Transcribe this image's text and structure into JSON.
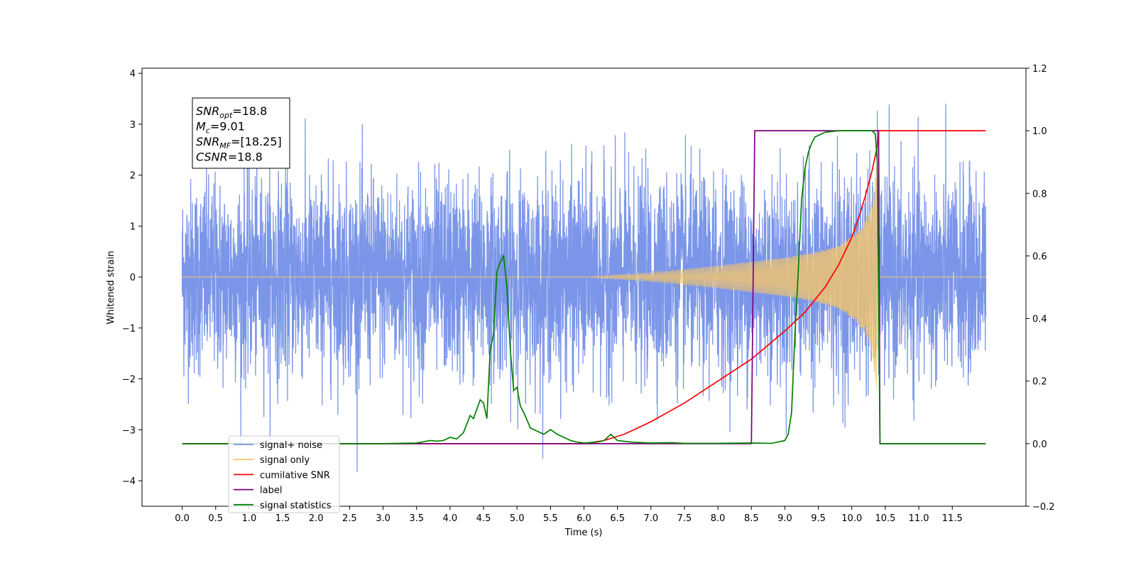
{
  "chart_data": {
    "type": "line",
    "xlabel": "Time (s)",
    "ylabel": "Whitened strain",
    "xlim": [
      -0.6,
      12.6
    ],
    "ylim": [
      -4.5,
      4.1
    ],
    "y2lim": [
      -0.2,
      1.2
    ],
    "x_ticks": [
      0.0,
      0.5,
      1.0,
      1.5,
      2.0,
      2.5,
      3.0,
      3.5,
      4.0,
      4.5,
      5.0,
      5.5,
      6.0,
      6.5,
      7.0,
      7.5,
      8.0,
      8.5,
      9.0,
      9.5,
      10.0,
      10.5,
      11.0,
      11.5
    ],
    "x_tick_labels": [
      "0.0",
      "0.5",
      "1.0",
      "1.5",
      "2.0",
      "2.5",
      "3.0",
      "3.5",
      "4.0",
      "4.5",
      "5.0",
      "5.5",
      "6.0",
      "6.5",
      "7.0",
      "7.5",
      "8.0",
      "8.5",
      "9.0",
      "9.5",
      "10.0",
      "10.5",
      "11.0",
      "11.5"
    ],
    "y_ticks": [
      4,
      3,
      2,
      1,
      0,
      -1,
      -2,
      -3,
      -4
    ],
    "y_tick_labels": [
      "4",
      "3",
      "2",
      "1",
      "0",
      "−1",
      "−2",
      "−3",
      "−4"
    ],
    "y2_ticks": [
      1.2,
      1.0,
      0.8,
      0.6,
      0.4,
      0.2,
      0.0,
      -0.2
    ],
    "y2_tick_labels": [
      "1.2",
      "1.0",
      "0.8",
      "0.6",
      "0.4",
      "0.2",
      "0.0",
      "−0.2"
    ],
    "grid": false,
    "legend_position": "lower-left",
    "annotation": {
      "position": "upper-left",
      "lines": [
        {
          "base": "SNR",
          "sub": "opt",
          "rest": "=18.8"
        },
        {
          "base": "M",
          "sub": "c",
          "rest": "=9.01"
        },
        {
          "base": "SNR",
          "sub": "MF",
          "rest": "=[18.25]"
        },
        {
          "base": "CSNR",
          "sub": "",
          "rest": "=18.8"
        }
      ]
    },
    "series": [
      {
        "name": "signal+ noise",
        "axis": "left",
        "color": "#7b96e8",
        "kind": "noise",
        "x_range": [
          0.0,
          12.0
        ],
        "envelope_typical": 2.4,
        "min_value": -4.1,
        "max_value": 3.72
      },
      {
        "name": "signal only",
        "axis": "left",
        "color": "#f5c56a",
        "kind": "chirp",
        "x_range": [
          0.0,
          12.0
        ],
        "merger_time": 10.4,
        "envelope": {
          "x": [
            0.0,
            6.0,
            7.0,
            8.0,
            9.0,
            9.5,
            9.8,
            10.0,
            10.2,
            10.3,
            10.38,
            10.42,
            12.0
          ],
          "y": [
            0.0,
            0.0,
            0.08,
            0.22,
            0.38,
            0.5,
            0.62,
            0.8,
            1.1,
            1.5,
            2.4,
            0.0,
            0.0
          ]
        }
      },
      {
        "name": "cumilative SNR",
        "axis": "right",
        "color": "#ff0000",
        "x": [
          0.0,
          6.0,
          6.3,
          6.6,
          7.0,
          7.5,
          8.0,
          8.5,
          9.0,
          9.3,
          9.6,
          9.8,
          10.0,
          10.1,
          10.2,
          10.3,
          10.38,
          10.4,
          12.0
        ],
        "y": [
          0.0,
          0.0,
          0.01,
          0.03,
          0.07,
          0.13,
          0.2,
          0.27,
          0.36,
          0.42,
          0.5,
          0.57,
          0.66,
          0.72,
          0.79,
          0.87,
          0.95,
          1.0,
          1.0
        ]
      },
      {
        "name": "label",
        "axis": "right",
        "color": "#800080",
        "x": [
          0.0,
          8.5,
          8.55,
          10.4,
          10.42,
          12.0
        ],
        "y": [
          0.0,
          0.0,
          1.0,
          1.0,
          0.0,
          0.0
        ]
      },
      {
        "name": "signal statistics",
        "axis": "right",
        "color": "#008000",
        "x": [
          0.0,
          3.0,
          3.5,
          3.7,
          3.8,
          3.9,
          4.0,
          4.1,
          4.2,
          4.3,
          4.35,
          4.45,
          4.5,
          4.55,
          4.6,
          4.65,
          4.7,
          4.75,
          4.8,
          4.85,
          4.9,
          4.95,
          5.0,
          5.05,
          5.1,
          5.2,
          5.3,
          5.4,
          5.5,
          5.6,
          5.7,
          5.8,
          5.9,
          6.0,
          6.2,
          6.3,
          6.4,
          6.5,
          6.7,
          7.0,
          7.3,
          7.5,
          8.0,
          8.5,
          8.8,
          9.0,
          9.05,
          9.1,
          9.15,
          9.2,
          9.25,
          9.3,
          9.35,
          9.4,
          9.45,
          9.5,
          9.6,
          9.8,
          10.0,
          10.2,
          10.3,
          10.35,
          10.38,
          10.4,
          10.42,
          12.0
        ],
        "y": [
          0.0,
          0.0,
          0.002,
          0.01,
          0.008,
          0.01,
          0.02,
          0.015,
          0.035,
          0.09,
          0.08,
          0.14,
          0.13,
          0.08,
          0.3,
          0.35,
          0.55,
          0.58,
          0.6,
          0.5,
          0.3,
          0.17,
          0.18,
          0.12,
          0.1,
          0.05,
          0.04,
          0.03,
          0.045,
          0.03,
          0.02,
          0.01,
          0.005,
          0.002,
          0.005,
          0.01,
          0.03,
          0.01,
          0.005,
          0.002,
          0.003,
          0.001,
          0.001,
          0.002,
          0.001,
          0.01,
          0.03,
          0.1,
          0.35,
          0.55,
          0.78,
          0.88,
          0.93,
          0.96,
          0.98,
          0.985,
          0.995,
          1.0,
          1.0,
          1.0,
          1.0,
          0.99,
          0.9,
          0.5,
          0.0,
          0.0
        ]
      }
    ],
    "legend_entries": [
      {
        "label": "signal+ noise",
        "color": "#7b96e8"
      },
      {
        "label": "signal only",
        "color": "#f5c56a"
      },
      {
        "label": "cumilative SNR",
        "color": "#ff0000"
      },
      {
        "label": "label",
        "color": "#800080"
      },
      {
        "label": "signal statistics",
        "color": "#008000"
      }
    ]
  }
}
